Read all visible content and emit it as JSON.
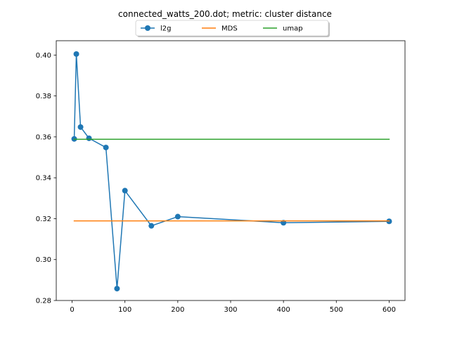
{
  "chart_data": {
    "type": "line",
    "title": "connected_watts_200.dot; metric: cluster distance",
    "xlabel": "",
    "ylabel": "",
    "xlim": [
      -30,
      630
    ],
    "ylim": [
      0.28,
      0.407
    ],
    "x_ticks": [
      0,
      100,
      200,
      300,
      400,
      500,
      600
    ],
    "y_ticks": [
      0.28,
      0.3,
      0.32,
      0.34,
      0.36,
      0.38,
      0.4
    ],
    "x_tick_labels": [
      "0",
      "100",
      "200",
      "300",
      "400",
      "500",
      "600"
    ],
    "y_tick_labels": [
      "0.28",
      "0.30",
      "0.32",
      "0.34",
      "0.36",
      "0.38",
      "0.40"
    ],
    "grid": false,
    "legend": {
      "placement": "top-center",
      "columns": 3
    },
    "series": [
      {
        "name": "l2g",
        "color": "#1f77b4",
        "marker": "circle",
        "x": [
          4,
          8,
          16,
          32,
          64,
          85,
          100,
          150,
          200,
          400,
          600
        ],
        "y": [
          0.359,
          0.4005,
          0.3648,
          0.3593,
          0.3548,
          0.2858,
          0.3337,
          0.3165,
          0.321,
          0.318,
          0.3187
        ]
      },
      {
        "name": "MDS",
        "color": "#ff7f0e",
        "marker": "none",
        "x": [
          4,
          600
        ],
        "y": [
          0.3189,
          0.3189
        ]
      },
      {
        "name": "umap",
        "color": "#2ca02c",
        "marker": "none",
        "x": [
          4,
          600
        ],
        "y": [
          0.3588,
          0.3588
        ]
      }
    ]
  }
}
